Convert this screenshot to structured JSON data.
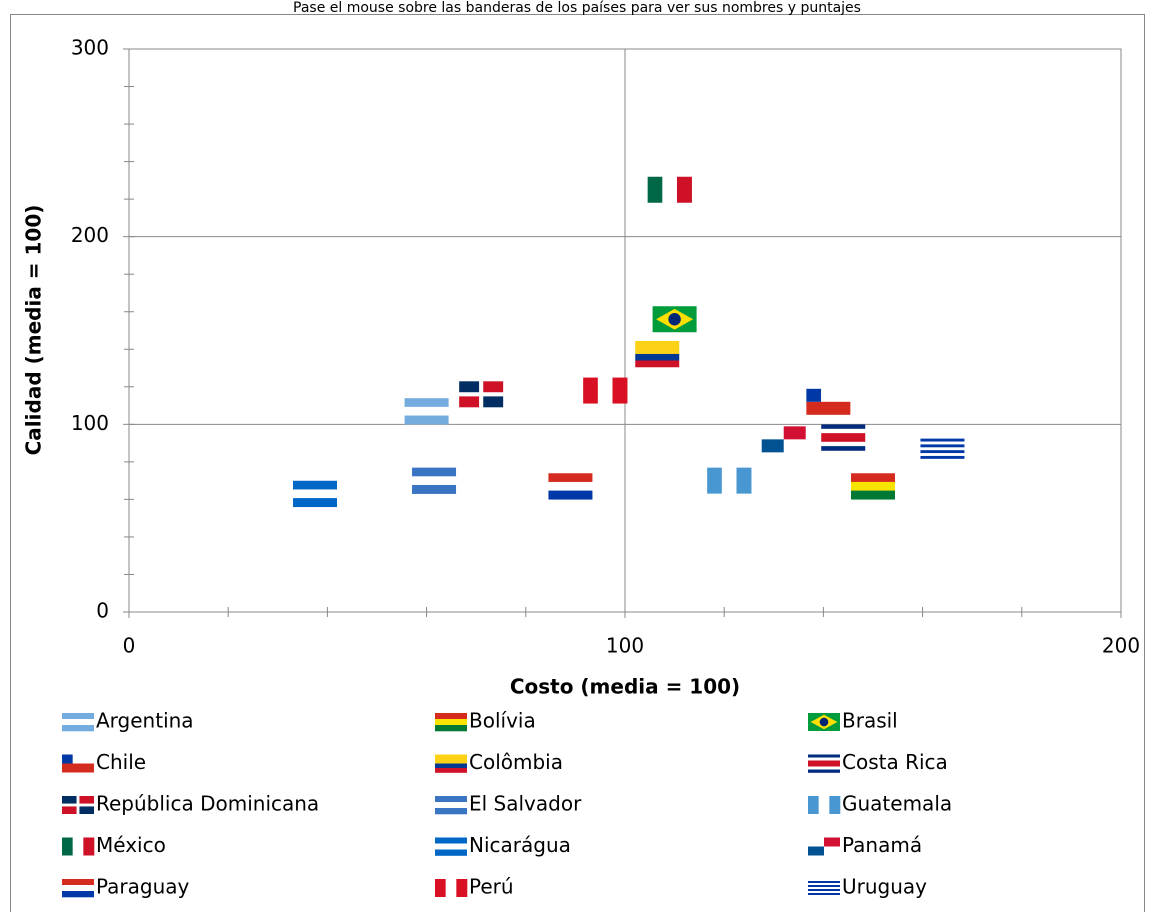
{
  "chart_data": {
    "type": "scatter",
    "title": "Pase el mouse sobre las banderas de los países para ver sus nombres y puntajes",
    "x_label": "Costo (media = 100)",
    "y_label": "Calidad (media = 100)",
    "xlim": [
      0,
      200
    ],
    "xticks": [
      0,
      100,
      200
    ],
    "x_minor_ticks": [
      20,
      40,
      60,
      80,
      120,
      140,
      160,
      180
    ],
    "ylim": [
      0,
      300
    ],
    "yticks": [
      0,
      100,
      200,
      300
    ],
    "y_minor_ticks": [
      20,
      40,
      60,
      80,
      120,
      140,
      160,
      180,
      220,
      240,
      260,
      280
    ],
    "grid": true,
    "legend": "bottom",
    "series": [
      {
        "name": "Argentina",
        "x": [
          60
        ],
        "values": [
          107
        ],
        "flag": "h",
        "colors": [
          "#74acdf",
          "#ffffff",
          "#74acdf"
        ]
      },
      {
        "name": "Bolívia",
        "x": [
          150
        ],
        "values": [
          67
        ],
        "flag": "h",
        "colors": [
          "#d52b1e",
          "#f9e300",
          "#007934"
        ]
      },
      {
        "name": "Brasil",
        "x": [
          110
        ],
        "values": [
          156
        ],
        "flag": "diamond",
        "colors": [
          "#009c3b",
          "#ffdf00",
          "#002776"
        ]
      },
      {
        "name": "Chile",
        "x": [
          141
        ],
        "values": [
          112
        ],
        "flag": "chile",
        "colors": [
          "#ffffff",
          "#d52b1e",
          "#0039a6"
        ]
      },
      {
        "name": "Colômbia",
        "x": [
          106.5
        ],
        "values": [
          137.5
        ],
        "flag": "h",
        "colors": [
          "#fcd116",
          "#fcd116",
          "#003893",
          "#ce1126"
        ]
      },
      {
        "name": "Costa Rica",
        "x": [
          144
        ],
        "values": [
          93
        ],
        "flag": "h",
        "colors": [
          "#002b7f",
          "#ffffff",
          "#ce1126",
          "#ce1126",
          "#ffffff",
          "#002b7f"
        ]
      },
      {
        "name": "República Dominicana",
        "x": [
          71
        ],
        "values": [
          116
        ],
        "flag": "cross",
        "colors": [
          "#002d62",
          "#ce1126",
          "#ffffff"
        ]
      },
      {
        "name": "El Salvador",
        "x": [
          61.5
        ],
        "values": [
          70
        ],
        "flag": "h",
        "colors": [
          "#3a75c4",
          "#ffffff",
          "#3a75c4"
        ]
      },
      {
        "name": "Guatemala",
        "x": [
          121
        ],
        "values": [
          70
        ],
        "flag": "v",
        "colors": [
          "#4997d0",
          "#ffffff",
          "#4997d0"
        ]
      },
      {
        "name": "México",
        "x": [
          109
        ],
        "values": [
          225
        ],
        "flag": "v",
        "colors": [
          "#006847",
          "#ffffff",
          "#ce1126"
        ]
      },
      {
        "name": "Nicarágua",
        "x": [
          37.5
        ],
        "values": [
          63
        ],
        "flag": "h",
        "colors": [
          "#0067c6",
          "#ffffff",
          "#0067c6"
        ]
      },
      {
        "name": "Panamá",
        "x": [
          132
        ],
        "values": [
          92
        ],
        "flag": "panama",
        "colors": [
          "#ffffff",
          "#d21034",
          "#005293"
        ]
      },
      {
        "name": "Paraguay",
        "x": [
          89
        ],
        "values": [
          67
        ],
        "flag": "h",
        "colors": [
          "#d52b1e",
          "#ffffff",
          "#0038a8"
        ]
      },
      {
        "name": "Perú",
        "x": [
          96
        ],
        "values": [
          118
        ],
        "flag": "v",
        "colors": [
          "#d91023",
          "#ffffff",
          "#d91023"
        ]
      },
      {
        "name": "Uruguay",
        "x": [
          164
        ],
        "values": [
          87
        ],
        "flag": "h",
        "colors": [
          "#ffffff",
          "#0038a8",
          "#ffffff",
          "#0038a8",
          "#ffffff",
          "#0038a8",
          "#ffffff",
          "#0038a8",
          "#ffffff"
        ]
      }
    ]
  }
}
